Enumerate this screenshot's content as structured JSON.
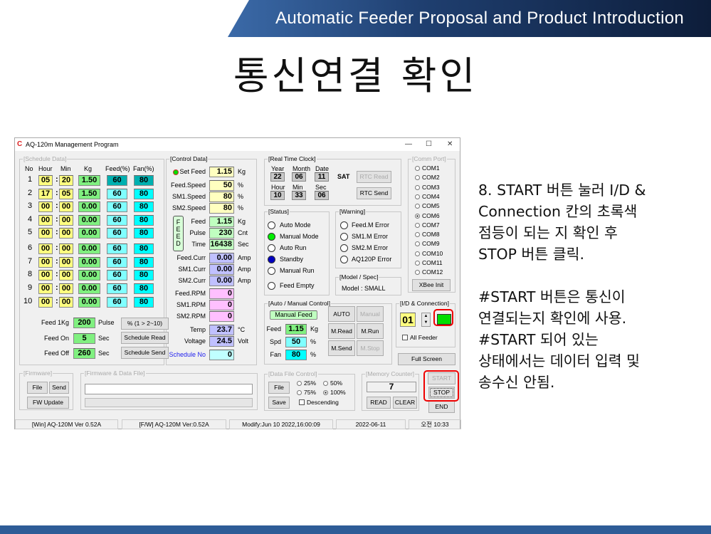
{
  "slide": {
    "header": "Automatic Feeder Proposal and Product Introduction",
    "title": "통신연결 확인",
    "note": "8. START 버튼 눌러 I/D &\nConnection 칸의 초록색\n점등이 되는 지 확인 후\nSTOP 버튼 클릭.\n\n#START 버튼은 통신이\n연결되는지 확인에 사용.\n#START 되어 있는\n상태에서는 데이터 입력 및\n송수신 안됨."
  },
  "app": {
    "title": "AQ-120m Management Program",
    "controls": {
      "minimize": "—",
      "maximize": "☐",
      "close": "✕"
    }
  },
  "schedule": {
    "label": "[Schedule Data]",
    "headers": [
      "No",
      "Hour",
      "Min",
      "Kg",
      "Feed(%)",
      "Fan(%)"
    ],
    "rows": [
      [
        "1",
        "05",
        "20",
        "1.50",
        "60",
        "80"
      ],
      [
        "2",
        "17",
        "05",
        "1.50",
        "60",
        "80"
      ],
      [
        "3",
        "00",
        "00",
        "0.00",
        "60",
        "80"
      ],
      [
        "4",
        "00",
        "00",
        "0.00",
        "60",
        "80"
      ],
      [
        "5",
        "00",
        "00",
        "0.00",
        "60",
        "80"
      ],
      [
        "6",
        "00",
        "00",
        "0.00",
        "60",
        "80"
      ],
      [
        "7",
        "00",
        "00",
        "0.00",
        "60",
        "80"
      ],
      [
        "8",
        "00",
        "00",
        "0.00",
        "60",
        "80"
      ],
      [
        "9",
        "00",
        "00",
        "0.00",
        "60",
        "80"
      ],
      [
        "10",
        "00",
        "00",
        "0.00",
        "60",
        "80"
      ]
    ],
    "feed_1kg": {
      "label": "Feed 1Kg",
      "value": "200",
      "unit": "Pulse"
    },
    "feed_on": {
      "label": "Feed On",
      "value": "5",
      "unit": "Sec"
    },
    "feed_off": {
      "label": "Feed Off",
      "value": "260",
      "unit": "Sec"
    },
    "buttons": {
      "percent": "%  (1 > 2~10)",
      "read": "Schedule Read",
      "send": "Schedule Send"
    }
  },
  "control": {
    "label": "[Control Data]",
    "feed_vert": "F\nE\nE\nD",
    "led_color": "#00dd00",
    "rows": [
      {
        "label": "Set Feed",
        "value": "1.15",
        "unit": "Kg"
      },
      {
        "label": "Feed.Speed",
        "value": "50",
        "unit": "%"
      },
      {
        "label": "SM1.Speed",
        "value": "80",
        "unit": "%"
      },
      {
        "label": "SM2.Speed",
        "value": "80",
        "unit": "%"
      },
      {
        "label": "Feed",
        "value": "1.15",
        "unit": "Kg"
      },
      {
        "label": "Pulse",
        "value": "230",
        "unit": "Cnt"
      },
      {
        "label": "Time",
        "value": "16438",
        "unit": "Sec"
      },
      {
        "label": "Feed.Curr",
        "value": "0.00",
        "unit": "Amp"
      },
      {
        "label": "SM1.Curr",
        "value": "0.00",
        "unit": "Amp"
      },
      {
        "label": "SM2.Curr",
        "value": "0.00",
        "unit": "Amp"
      },
      {
        "label": "Feed.RPM",
        "value": "0",
        "unit": ""
      },
      {
        "label": "SM1.RPM",
        "value": "0",
        "unit": ""
      },
      {
        "label": "SM2.RPM",
        "value": "0",
        "unit": ""
      },
      {
        "label": "Temp",
        "value": "23.7",
        "unit": "°C"
      },
      {
        "label": "Voltage",
        "value": "24.5",
        "unit": "Volt"
      },
      {
        "label": "Schedule No",
        "value": "0",
        "unit": ""
      }
    ]
  },
  "rtc": {
    "label": "[Real Time Clock]",
    "year": {
      "label": "Year",
      "value": "22"
    },
    "month": {
      "label": "Month",
      "value": "06"
    },
    "date": {
      "label": "Date",
      "value": "11"
    },
    "day": "SAT",
    "hour": {
      "label": "Hour",
      "value": "10"
    },
    "min": {
      "label": "Min",
      "value": "33"
    },
    "sec": {
      "label": "Sec",
      "value": "06"
    },
    "read": "RTC Read",
    "send": "RTC Send"
  },
  "status": {
    "label": "[Status]",
    "items": [
      {
        "label": "Auto Mode",
        "color": ""
      },
      {
        "label": "Manual Mode",
        "color": "#00ee00"
      },
      {
        "label": "Auto Run",
        "color": ""
      },
      {
        "label": "Standby",
        "color": "#0000c0"
      },
      {
        "label": "Manual Run",
        "color": ""
      },
      {
        "label": "Feed Empty",
        "color": ""
      }
    ]
  },
  "warning": {
    "label": "[Warning]",
    "items": [
      "Feed.M Error",
      "SM1.M Error",
      "SM2.M Error",
      "AQ120P Error"
    ]
  },
  "model": {
    "label": "[Model / Spec]",
    "value": "Model : SMALL"
  },
  "comm": {
    "label": "[Comm Port]",
    "ports": [
      "COM1",
      "COM2",
      "COM3",
      "COM4",
      "COM5",
      "COM6",
      "COM7",
      "COM8",
      "COM9",
      "COM10",
      "COM11",
      "COM12"
    ],
    "selected": "COM6",
    "xbee": "XBee Init"
  },
  "manual": {
    "label": "[Auto / Manual Control]",
    "mode": "Manual Feed",
    "feed": {
      "label": "Feed",
      "value": "1.15",
      "unit": "Kg"
    },
    "spd": {
      "label": "Spd",
      "value": "50",
      "unit": "%"
    },
    "fan": {
      "label": "Fan",
      "value": "80",
      "unit": "%"
    },
    "buttons": [
      "AUTO",
      "Manual",
      "M.Read",
      "M.Run",
      "M.Send",
      "M.Stop"
    ]
  },
  "idconn": {
    "label": "[I/D & Connection]",
    "id": "01",
    "all_feeder": "All Feeder",
    "connected_color": "#00dd00"
  },
  "full_screen": "Full Screen",
  "firmware": {
    "label": "[Firmware]",
    "file": "File",
    "send": "Send",
    "update": "FW Update"
  },
  "fwfile": {
    "label": "[Firmware & Data File]",
    "path": ""
  },
  "datafile": {
    "label": "[Data File Control]",
    "file": "File",
    "save": "Save",
    "options": [
      "25%",
      "50%",
      "75%",
      "100%"
    ],
    "selected": "100%",
    "descending": "Descending"
  },
  "memory": {
    "label": "[Memory Counter]",
    "value": "7",
    "read": "READ",
    "clear": "CLEAR"
  },
  "run": {
    "start": "START",
    "stop": "STOP",
    "end": "END"
  },
  "statusbar": [
    "[Win] AQ-120M Ver 0.52A",
    "[F/W] AQ-120M Ver:0.52A",
    "Modify:Jun 10 2022,16:00:09",
    "2022-06-11",
    "오전 10:33"
  ]
}
